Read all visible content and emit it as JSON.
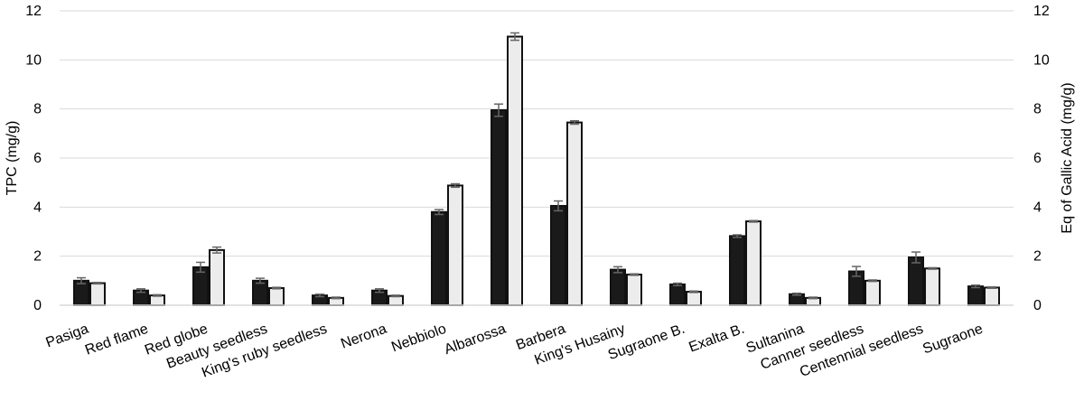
{
  "chart_data": {
    "type": "bar",
    "title": "",
    "xlabel": "",
    "ylabel": "TPC (mg/g)",
    "ylabel_right": "Eq of Gallic Acid (mg/g)",
    "ylim": [
      0,
      12
    ],
    "yticks": [
      "0",
      "2",
      "4",
      "6",
      "8",
      "10",
      "12"
    ],
    "grid": true,
    "legend": "none",
    "categories": [
      "Pasiga",
      "Red flame",
      "Red globe",
      "Beauty seedless",
      "King's ruby seedless",
      "Nerona",
      "Nebbiolo",
      "Albarossa",
      "Barbera",
      "King's Husainy",
      "Sugraone B.",
      "Exalta B.",
      "Sultanina",
      "Canner seedless",
      "Centennial seedless",
      "Sugraone"
    ],
    "series": [
      {
        "color": "#1a1a1a",
        "values": [
          1.0,
          0.6,
          1.55,
          1.0,
          0.4,
          0.6,
          3.8,
          7.95,
          4.05,
          1.45,
          0.85,
          2.82,
          0.45,
          1.38,
          1.95,
          0.77
        ],
        "errors": [
          0.12,
          0.07,
          0.2,
          0.1,
          0.05,
          0.07,
          0.1,
          0.25,
          0.2,
          0.12,
          0.05,
          0.05,
          0.04,
          0.2,
          0.22,
          0.05
        ]
      },
      {
        "color": "#ececec",
        "values": [
          0.9,
          0.4,
          2.25,
          0.7,
          0.3,
          0.38,
          4.88,
          10.95,
          7.45,
          1.25,
          0.55,
          3.42,
          0.3,
          1.0,
          1.5,
          0.72
        ],
        "errors": [
          0.03,
          0.03,
          0.12,
          0.03,
          0.03,
          0.03,
          0.07,
          0.15,
          0.07,
          0.03,
          0.03,
          0.03,
          0.03,
          0.03,
          0.03,
          0.03
        ]
      }
    ]
  }
}
